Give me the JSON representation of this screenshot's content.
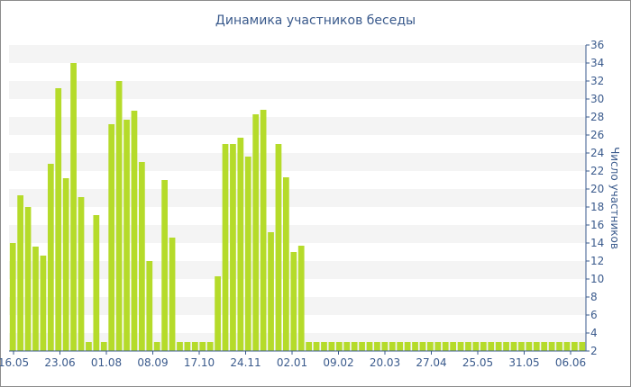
{
  "chart_data": {
    "type": "bar",
    "title": "Динамика участников беседы",
    "ylabel": "Число участников",
    "xlabel": "",
    "ylim": [
      2,
      36
    ],
    "yticks": [
      2,
      4,
      6,
      8,
      10,
      12,
      14,
      16,
      18,
      20,
      22,
      24,
      26,
      28,
      30,
      32,
      34,
      36
    ],
    "xtick_labels": [
      "16.05",
      "23.06",
      "01.08",
      "08.09",
      "17.10",
      "24.11",
      "02.01",
      "09.02",
      "20.03",
      "27.04",
      "25.05",
      "31.05",
      "06.06"
    ],
    "values": [
      14,
      19.3,
      18,
      13.6,
      12.6,
      22.8,
      31.2,
      21.2,
      34,
      19.1,
      3,
      17.1,
      3,
      27.2,
      32,
      27.7,
      28.7,
      23,
      12,
      3,
      21,
      14.6,
      3,
      3,
      3,
      3,
      3,
      10.3,
      25,
      25,
      25.7,
      23.6,
      28.3,
      28.8,
      15.2,
      25,
      21.3,
      13,
      13.7,
      3,
      3,
      3,
      3,
      3,
      3,
      3,
      3,
      3,
      3,
      3,
      3,
      3,
      3,
      3,
      3,
      3,
      3,
      3,
      3,
      3,
      3,
      3,
      3,
      3,
      3,
      3,
      3,
      3,
      3,
      3,
      3,
      3,
      3,
      3,
      3,
      3
    ],
    "bar_color": "#b5db2a",
    "band_color": "#f4f4f4",
    "axis_color": "#3a5a8c",
    "grid": true,
    "legend": "none"
  }
}
